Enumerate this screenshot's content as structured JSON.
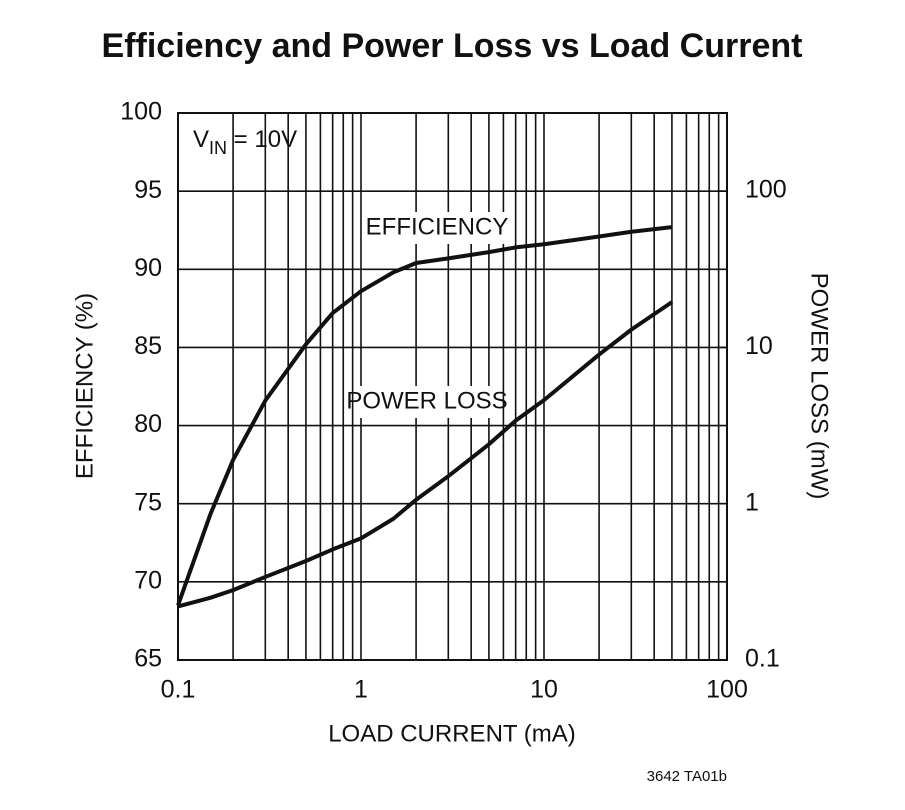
{
  "chart_data": {
    "type": "line",
    "title": "Efficiency and Power Loss vs Load Current",
    "x_label": "LOAD CURRENT (mA)",
    "y_label": "EFFICIENCY (%)",
    "y2_label": "POWER LOSS (mW)",
    "condition": {
      "main": "V",
      "sub": "IN",
      "tail": " = 10V"
    },
    "footnote": "3642 TA01b",
    "x_log": true,
    "y2_log": true,
    "grid": true,
    "xlim": [
      0.1,
      100
    ],
    "xticks": [
      0.1,
      1,
      10,
      100
    ],
    "xminorticks": [
      0.2,
      0.3,
      0.4,
      0.5,
      0.6,
      0.7,
      0.8,
      0.9,
      2,
      3,
      4,
      5,
      6,
      7,
      8,
      9,
      20,
      30,
      40,
      50,
      60,
      70,
      80,
      90
    ],
    "ylim": [
      65,
      100
    ],
    "yticks": [
      65,
      70,
      75,
      80,
      85,
      90,
      95,
      100
    ],
    "y2lim": [
      0.1,
      316.2
    ],
    "y2ticks": [
      0.1,
      1,
      10,
      100
    ],
    "x": [
      0.1,
      0.15,
      0.2,
      0.3,
      0.5,
      0.7,
      1,
      1.5,
      2,
      3,
      5,
      7,
      10,
      20,
      30,
      50
    ],
    "series": [
      {
        "name": "EFFICIENCY",
        "color": "#111111",
        "values": [
          68.5,
          74.3,
          77.8,
          81.6,
          85.2,
          87.2,
          88.6,
          89.8,
          90.4,
          90.7,
          91.1,
          91.4,
          91.6,
          92.1,
          92.4,
          92.7
        ]
      },
      {
        "name": "POWER LOSS",
        "color": "#111111",
        "axis": "y2",
        "values": [
          0.22,
          0.25,
          0.28,
          0.34,
          0.43,
          0.51,
          0.6,
          0.8,
          1.06,
          1.5,
          2.4,
          3.4,
          4.6,
          9,
          13,
          19.5
        ]
      }
    ]
  }
}
